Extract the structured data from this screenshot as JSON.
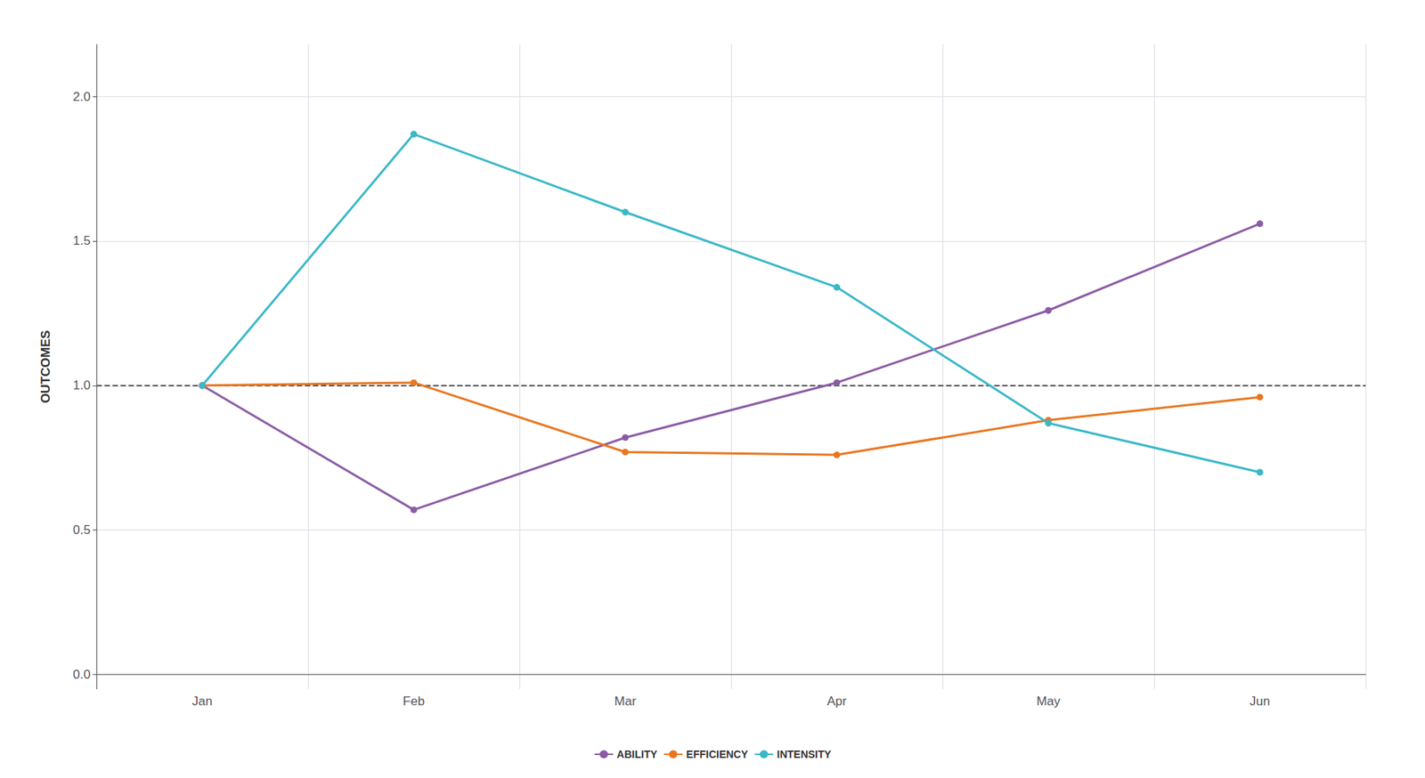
{
  "chart_data": {
    "type": "line",
    "categories": [
      "Jan",
      "Feb",
      "Mar",
      "Apr",
      "May",
      "Jun"
    ],
    "series": [
      {
        "name": "ABILITY",
        "color": "#8B5CA5",
        "marker": "circle",
        "values": [
          1.0,
          0.57,
          0.82,
          1.01,
          1.26,
          1.56
        ]
      },
      {
        "name": "EFFICIENCY",
        "color": "#E87722",
        "marker": "circle",
        "values": [
          1.0,
          1.01,
          0.77,
          0.76,
          0.88,
          0.96
        ]
      },
      {
        "name": "INTENSITY",
        "color": "#3AB8C8",
        "marker": "circle",
        "values": [
          1.0,
          1.87,
          1.6,
          1.34,
          0.87,
          0.7
        ]
      }
    ],
    "ylabel": "OUTCOMES",
    "ylim": [
      -0.05,
      2.18
    ],
    "yticks": [
      {
        "value": 0.0,
        "label": "0.0"
      },
      0.5,
      {
        "value": 1.0,
        "label": "1.0"
      },
      1.5,
      {
        "value": 2.0,
        "label": "2.0"
      }
    ],
    "hlines": [
      {
        "value": 1.0,
        "color": "#555555",
        "line_style": "dashed"
      }
    ],
    "grid": true,
    "legend": "bottom"
  }
}
